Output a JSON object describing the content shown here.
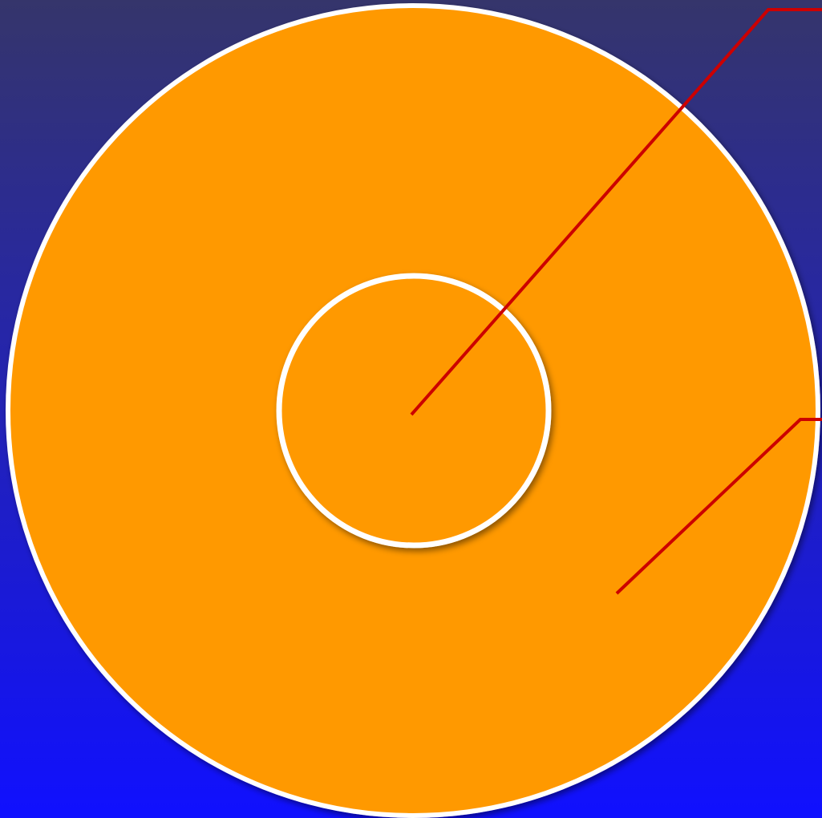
{
  "colors": {
    "background_top": "#35356b",
    "background_bottom": "#1010ff",
    "circle_fill": "#ff9900",
    "circle_stroke": "#ffffff",
    "leader_line": "#cc0000"
  },
  "diagram": {
    "description_labels": []
  }
}
